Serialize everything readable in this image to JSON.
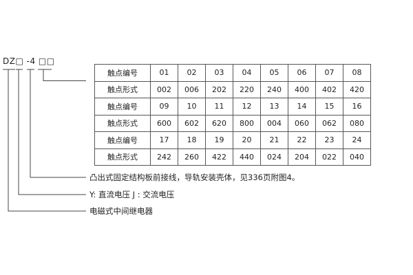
{
  "model_code": "DZ□ -4 □□",
  "table": {
    "rows": [
      {
        "label": "触点编号",
        "cells": [
          "01",
          "02",
          "03",
          "04",
          "05",
          "06",
          "07",
          "08"
        ]
      },
      {
        "label": "触点形式",
        "cells": [
          "002",
          "006",
          "202",
          "220",
          "240",
          "400",
          "402",
          "420"
        ]
      },
      {
        "label": "触点编号",
        "cells": [
          "09",
          "10",
          "11",
          "12",
          "13",
          "14",
          "15",
          "16"
        ]
      },
      {
        "label": "触点形式",
        "cells": [
          "600",
          "602",
          "620",
          "800",
          "004",
          "060",
          "062",
          "080"
        ]
      },
      {
        "label": "触点编号",
        "cells": [
          "17",
          "18",
          "19",
          "20",
          "21",
          "22",
          "23",
          "24"
        ]
      },
      {
        "label": "触点形式",
        "cells": [
          "242",
          "260",
          "422",
          "440",
          "024",
          "204",
          "022",
          "040"
        ]
      }
    ]
  },
  "notes": [
    "凸出式固定结构板前接线，导轨安装壳体，见336页附图4。",
    "Y: 直流电压   J : 交流电压",
    "电磁式中间继电器"
  ]
}
